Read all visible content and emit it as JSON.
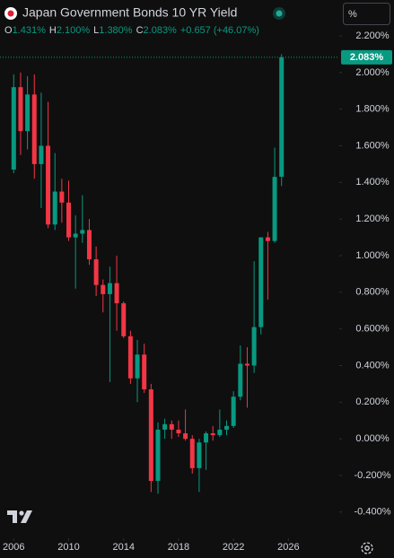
{
  "chart_data": {
    "type": "candlestick",
    "title": "Japan Government Bonds 10 YR Yield",
    "legend": [
      {
        "key": "O",
        "text": "1.431%"
      },
      {
        "key": "H",
        "text": "2.100%"
      },
      {
        "key": "L",
        "text": "1.380%"
      },
      {
        "key": "C",
        "text": "2.083%"
      }
    ],
    "change": "+0.657 (+46.07%)",
    "scale_button": "%",
    "x": [
      2006,
      2006.5,
      2007,
      2007.5,
      2008,
      2008.5,
      2009,
      2009.5,
      2010,
      2010.5,
      2011,
      2011.5,
      2012,
      2012.5,
      2013,
      2013.5,
      2014,
      2014.5,
      2015,
      2015.5,
      2016,
      2016.5,
      2017,
      2017.5,
      2018,
      2018.5,
      2019,
      2019.5,
      2020,
      2020.5,
      2021,
      2021.5,
      2022,
      2022.5,
      2023,
      2023.5,
      2024,
      2024.5,
      2025,
      2025.5
    ],
    "open": [
      1.47,
      1.92,
      1.68,
      1.88,
      1.5,
      1.6,
      1.17,
      1.35,
      1.29,
      1.1,
      1.12,
      1.14,
      0.98,
      0.84,
      0.79,
      0.85,
      0.74,
      0.56,
      0.33,
      0.46,
      0.27,
      -0.23,
      0.05,
      0.08,
      0.05,
      0.03,
      0.0,
      -0.16,
      -0.02,
      0.03,
      0.02,
      0.05,
      0.07,
      0.23,
      0.41,
      0.4,
      0.61,
      1.1,
      1.08,
      1.431
    ],
    "high": [
      1.99,
      2.0,
      1.98,
      1.99,
      1.89,
      1.84,
      1.56,
      1.42,
      1.41,
      1.22,
      1.33,
      1.2,
      1.05,
      0.87,
      0.94,
      1.0,
      0.75,
      0.59,
      0.54,
      0.52,
      0.3,
      0.09,
      0.11,
      0.1,
      0.1,
      0.16,
      0.02,
      0.0,
      0.04,
      0.07,
      0.16,
      0.1,
      0.26,
      0.51,
      0.5,
      0.97,
      1.1,
      1.13,
      1.59,
      2.1
    ],
    "low": [
      1.45,
      1.55,
      1.58,
      1.42,
      1.26,
      1.15,
      1.14,
      1.18,
      1.08,
      0.82,
      1.07,
      0.95,
      0.78,
      0.69,
      0.31,
      0.59,
      0.55,
      0.3,
      0.2,
      0.25,
      -0.29,
      -0.3,
      0.0,
      0.0,
      0.01,
      -0.01,
      -0.19,
      -0.29,
      -0.17,
      -0.01,
      0.01,
      0.02,
      0.06,
      0.21,
      0.17,
      0.36,
      0.57,
      0.76,
      1.07,
      1.38
    ],
    "close": [
      1.92,
      1.68,
      1.88,
      1.5,
      1.6,
      1.17,
      1.35,
      1.29,
      1.1,
      1.12,
      1.14,
      0.98,
      0.84,
      0.79,
      0.85,
      0.74,
      0.56,
      0.33,
      0.46,
      0.27,
      -0.23,
      0.05,
      0.08,
      0.05,
      0.03,
      0.0,
      -0.16,
      -0.02,
      0.03,
      0.02,
      0.05,
      0.07,
      0.23,
      0.41,
      0.4,
      0.61,
      1.1,
      1.08,
      1.43,
      2.083
    ],
    "up_color": "#089981",
    "down_color": "#f23645",
    "xlim": [
      2005,
      2029.7
    ],
    "xticks": [
      2006,
      2010,
      2014,
      2018,
      2022,
      2026
    ],
    "ylim": [
      -0.543,
      2.396
    ],
    "yticks": [
      {
        "value": -0.4,
        "label": "-0.400%"
      },
      {
        "value": -0.2,
        "label": "-0.200%"
      },
      {
        "value": 0,
        "label": "0.000%"
      },
      {
        "value": 0.2,
        "label": "0.200%"
      },
      {
        "value": 0.4,
        "label": "0.400%"
      },
      {
        "value": 0.6,
        "label": "0.600%"
      },
      {
        "value": 0.8,
        "label": "0.800%"
      },
      {
        "value": 1.0,
        "label": "1.000%"
      },
      {
        "value": 1.2,
        "label": "1.200%"
      },
      {
        "value": 1.4,
        "label": "1.400%"
      },
      {
        "value": 1.6,
        "label": "1.600%"
      },
      {
        "value": 1.8,
        "label": "1.800%"
      },
      {
        "value": 2.0,
        "label": "2.000%"
      },
      {
        "value": 2.2,
        "label": "2.200%"
      }
    ],
    "price_line": {
      "value": 2.083,
      "label": "2.083%"
    }
  }
}
